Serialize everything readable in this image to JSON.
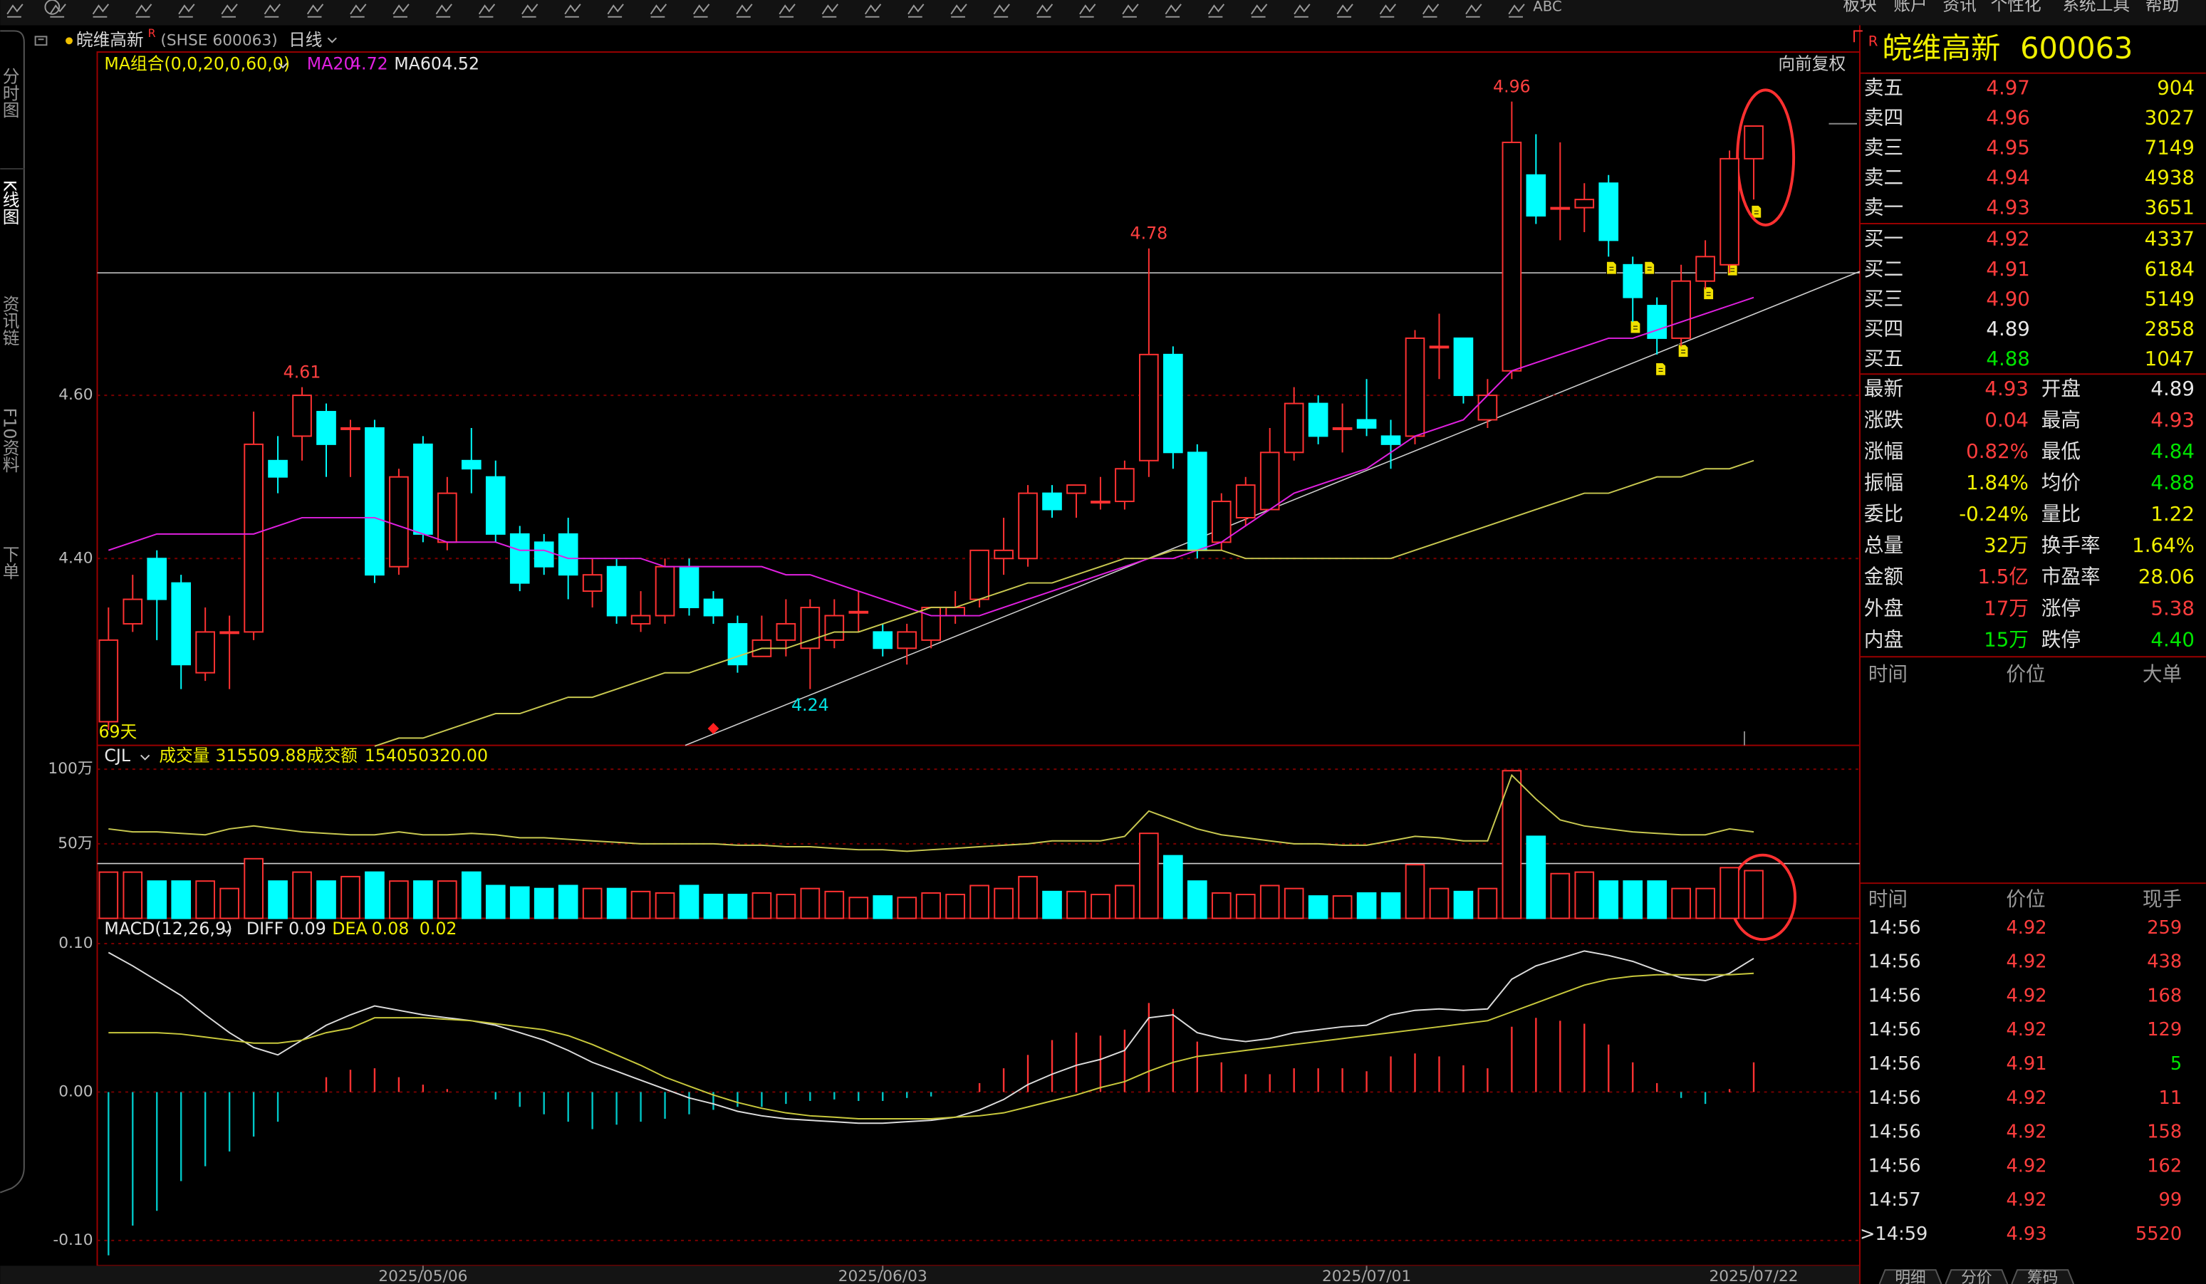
{
  "toolbar": {
    "abc": "ABC",
    "menu": [
      "板块",
      "账户",
      "资讯",
      "个性化",
      "系统工具",
      "帮助"
    ]
  },
  "sidebar": [
    "分时图",
    "K线图",
    "资讯链",
    "F10资料",
    "下单"
  ],
  "header": {
    "name": "皖维高新",
    "badge": "R",
    "code": "(SHSE 600063)",
    "period": "日线"
  },
  "chart_data": [
    {
      "type": "candlestick",
      "up_color": "#ff3232",
      "down_color": "#00ffff",
      "legend": {
        "title": "MA组合(0,0,20,0,60,0)",
        "values": [
          4.72,
          4.52
        ]
      },
      "note": "向前复权",
      "days": "69天",
      "ylim": [
        4.171,
        5.019
      ],
      "yticks": [
        {
          "value": 4.6,
          "label": "4.60"
        },
        {
          "value": 4.4,
          "label": "4.40"
        }
      ],
      "xticks": [
        {
          "value": 13,
          "label": "2025/05/06"
        },
        {
          "value": 32,
          "label": "2025/06/03"
        },
        {
          "value": 52,
          "label": "2025/07/01"
        },
        {
          "value": 68,
          "label": "2025/07/22"
        }
      ],
      "open": [
        4.2,
        4.32,
        4.4,
        4.37,
        4.26,
        4.31,
        4.31,
        4.52,
        4.55,
        4.58,
        4.56,
        4.56,
        4.39,
        4.54,
        4.42,
        4.52,
        4.5,
        4.43,
        4.42,
        4.43,
        4.36,
        4.39,
        4.32,
        4.33,
        4.39,
        4.35,
        4.32,
        4.28,
        4.3,
        4.29,
        4.3,
        4.335,
        4.31,
        4.29,
        4.3,
        4.33,
        4.35,
        4.4,
        4.4,
        4.48,
        4.48,
        4.47,
        4.47,
        4.52,
        4.65,
        4.53,
        4.42,
        4.45,
        4.46,
        4.53,
        4.59,
        4.56,
        4.57,
        4.55,
        4.55,
        4.66,
        4.67,
        4.57,
        4.63,
        4.87,
        4.83,
        4.83,
        4.86,
        4.76,
        4.71,
        4.67,
        4.74,
        4.76,
        4.89
      ],
      "high": [
        4.34,
        4.38,
        4.41,
        4.38,
        4.34,
        4.33,
        4.58,
        4.55,
        4.61,
        4.59,
        4.57,
        4.57,
        4.51,
        4.55,
        4.5,
        4.56,
        4.52,
        4.44,
        4.43,
        4.45,
        4.4,
        4.4,
        4.36,
        4.4,
        4.4,
        4.36,
        4.33,
        4.33,
        4.35,
        4.35,
        4.35,
        4.36,
        4.32,
        4.32,
        4.34,
        4.36,
        4.41,
        4.45,
        4.49,
        4.49,
        4.49,
        4.5,
        4.52,
        4.78,
        4.66,
        4.54,
        4.48,
        4.5,
        4.56,
        4.61,
        4.6,
        4.59,
        4.62,
        4.57,
        4.68,
        4.7,
        4.67,
        4.62,
        4.96,
        4.92,
        4.91,
        4.86,
        4.87,
        4.77,
        4.72,
        4.76,
        4.79,
        4.9,
        4.93
      ],
      "low": [
        4.19,
        4.31,
        4.3,
        4.24,
        4.25,
        4.24,
        4.3,
        4.48,
        4.52,
        4.5,
        4.5,
        4.37,
        4.38,
        4.42,
        4.41,
        4.48,
        4.42,
        4.36,
        4.38,
        4.35,
        4.34,
        4.32,
        4.31,
        4.32,
        4.33,
        4.32,
        4.26,
        4.28,
        4.28,
        4.24,
        4.29,
        4.31,
        4.28,
        4.27,
        4.29,
        4.32,
        4.34,
        4.38,
        4.39,
        4.45,
        4.45,
        4.46,
        4.46,
        4.5,
        4.51,
        4.4,
        4.41,
        4.44,
        4.46,
        4.52,
        4.54,
        4.53,
        4.55,
        4.51,
        4.54,
        4.62,
        4.59,
        4.56,
        4.62,
        4.81,
        4.79,
        4.8,
        4.77,
        4.69,
        4.65,
        4.66,
        4.73,
        4.75,
        4.84
      ],
      "close": [
        4.3,
        4.35,
        4.35,
        4.27,
        4.31,
        4.31,
        4.54,
        4.5,
        4.6,
        4.54,
        4.56,
        4.38,
        4.5,
        4.43,
        4.48,
        4.51,
        4.43,
        4.37,
        4.39,
        4.38,
        4.38,
        4.33,
        4.33,
        4.39,
        4.34,
        4.33,
        4.27,
        4.3,
        4.32,
        4.34,
        4.33,
        4.335,
        4.29,
        4.31,
        4.34,
        4.34,
        4.41,
        4.41,
        4.48,
        4.46,
        4.49,
        4.47,
        4.51,
        4.65,
        4.53,
        4.41,
        4.47,
        4.49,
        4.53,
        4.59,
        4.55,
        4.56,
        4.56,
        4.54,
        4.67,
        4.66,
        4.6,
        4.6,
        4.91,
        4.82,
        4.83,
        4.84,
        4.79,
        4.72,
        4.67,
        4.74,
        4.77,
        4.89,
        4.93
      ],
      "series": [
        {
          "name": "MA20",
          "color": "#e020e0",
          "values": [
            4.41,
            4.42,
            4.43,
            4.43,
            4.43,
            4.43,
            4.43,
            4.44,
            4.45,
            4.45,
            4.45,
            4.45,
            4.44,
            4.43,
            4.42,
            4.42,
            4.42,
            4.41,
            4.41,
            4.4,
            4.4,
            4.4,
            4.4,
            4.39,
            4.39,
            4.39,
            4.39,
            4.39,
            4.38,
            4.38,
            4.37,
            4.36,
            4.35,
            4.34,
            4.33,
            4.33,
            4.33,
            4.34,
            4.35,
            4.36,
            4.37,
            4.38,
            4.39,
            4.4,
            4.4,
            4.41,
            4.42,
            4.44,
            4.46,
            4.48,
            4.49,
            4.5,
            4.51,
            4.53,
            4.55,
            4.56,
            4.57,
            4.6,
            4.63,
            4.64,
            4.65,
            4.66,
            4.67,
            4.67,
            4.68,
            4.69,
            4.7,
            4.71,
            4.72
          ]
        },
        {
          "name": "MA60",
          "color": "#e8e8e8",
          "line_color": "#c8c850",
          "values": [
            null,
            null,
            null,
            null,
            null,
            null,
            null,
            null,
            null,
            null,
            null,
            4.17,
            4.18,
            4.18,
            4.19,
            4.2,
            4.21,
            4.21,
            4.22,
            4.23,
            4.23,
            4.24,
            4.25,
            4.26,
            4.26,
            4.27,
            4.28,
            4.29,
            4.29,
            4.3,
            4.31,
            4.31,
            4.32,
            4.33,
            4.34,
            4.34,
            4.35,
            4.36,
            4.37,
            4.37,
            4.38,
            4.39,
            4.4,
            4.4,
            4.41,
            4.41,
            4.41,
            4.4,
            4.4,
            4.4,
            4.4,
            4.4,
            4.4,
            4.4,
            4.41,
            4.42,
            4.43,
            4.44,
            4.45,
            4.46,
            4.47,
            4.48,
            4.48,
            4.49,
            4.5,
            4.5,
            4.51,
            4.51,
            4.52
          ]
        }
      ],
      "annotations": [
        {
          "index": 8,
          "value": 4.61
        },
        {
          "index": 43,
          "value": 4.78
        },
        {
          "index": 58,
          "value": 4.96
        },
        {
          "index": 29,
          "value": 4.24
        }
      ]
    },
    {
      "type": "bar",
      "title": "CJL",
      "up_color": "#ff3232",
      "down_color": "#00ffff",
      "legend": [
        {
          "name": "成交量",
          "value": "315509.88"
        },
        {
          "name": "成交额",
          "value": "154050320.00"
        }
      ],
      "ylim": [
        0,
        116
      ],
      "yticks": [
        {
          "value": 100,
          "label": "100万"
        },
        {
          "value": 50,
          "label": "50万"
        }
      ],
      "values": [
        31,
        31,
        25,
        25,
        25,
        20,
        40,
        25,
        31,
        25,
        28,
        31,
        25,
        25,
        25,
        31,
        22,
        21,
        20,
        22,
        20,
        20,
        18,
        17,
        22,
        16,
        16,
        17,
        16,
        20,
        18,
        14,
        15,
        14,
        17,
        16,
        22,
        20,
        28,
        18,
        18,
        16,
        22,
        57,
        42,
        25,
        17,
        16,
        22,
        20,
        15,
        15,
        17,
        17,
        36,
        20,
        18,
        20,
        99,
        55,
        30,
        31,
        25,
        25,
        25,
        20,
        20,
        34,
        32
      ],
      "series": [
        {
          "color": "#c8c850",
          "values": [
            60,
            58,
            58,
            57,
            56,
            60,
            62,
            60,
            58,
            57,
            56,
            56,
            58,
            56,
            56,
            57,
            56,
            54,
            54,
            53,
            52,
            51,
            50,
            50,
            50,
            50,
            49,
            49,
            48,
            48,
            47,
            46,
            46,
            45,
            46,
            47,
            48,
            49,
            50,
            52,
            52,
            52,
            55,
            72,
            66,
            60,
            56,
            54,
            52,
            50,
            50,
            49,
            49,
            52,
            55,
            54,
            52,
            52,
            96,
            80,
            66,
            62,
            60,
            58,
            57,
            56,
            56,
            60,
            58
          ]
        }
      ]
    },
    {
      "type": "macd",
      "title": "MACD(12,26,9)",
      "up_color": "#ff3232",
      "down_color": "#00c8c8",
      "legend": [
        {
          "name": "DIFF",
          "value": 0.09,
          "color": "#e8e8e8"
        },
        {
          "name": "DEA",
          "value": 0.08,
          "color": "#f0f000"
        },
        {
          "value": 0.02,
          "color": "#f0f000"
        }
      ],
      "ylim": [
        -0.117,
        0.117
      ],
      "yticks": [
        {
          "value": 0.1,
          "label": "0.10"
        },
        {
          "value": 0,
          "label": "0.00"
        },
        {
          "value": -0.1,
          "label": "-0.10"
        }
      ],
      "values": [
        -0.11,
        -0.09,
        -0.08,
        -0.06,
        -0.05,
        -0.04,
        -0.03,
        -0.02,
        0,
        0.01,
        0.015,
        0.016,
        0.01,
        0.005,
        0.002,
        0,
        -0.005,
        -0.01,
        -0.015,
        -0.02,
        -0.025,
        -0.022,
        -0.02,
        -0.018,
        -0.015,
        -0.012,
        -0.01,
        -0.01,
        -0.008,
        -0.006,
        -0.005,
        -0.006,
        -0.006,
        -0.004,
        -0.003,
        0,
        0.006,
        0.016,
        0.025,
        0.035,
        0.04,
        0.038,
        0.042,
        0.06,
        0.056,
        0.034,
        0.02,
        0.012,
        0.012,
        0.016,
        0.016,
        0.016,
        0.014,
        0.024,
        0.026,
        0.024,
        0.018,
        0.016,
        0.044,
        0.05,
        0.048,
        0.046,
        0.032,
        0.02,
        0.006,
        -0.004,
        -0.008,
        0.002,
        0.02
      ],
      "series": [
        {
          "color": "#dcdcdc",
          "values": [
            0.094,
            0.085,
            0.075,
            0.065,
            0.052,
            0.04,
            0.03,
            0.025,
            0.035,
            0.045,
            0.052,
            0.058,
            0.055,
            0.052,
            0.05,
            0.048,
            0.045,
            0.04,
            0.035,
            0.028,
            0.02,
            0.014,
            0.008,
            0.002,
            -0.004,
            -0.008,
            -0.013,
            -0.016,
            -0.018,
            -0.019,
            -0.02,
            -0.021,
            -0.021,
            -0.02,
            -0.019,
            -0.017,
            -0.012,
            -0.005,
            0.005,
            0.012,
            0.018,
            0.022,
            0.028,
            0.05,
            0.052,
            0.04,
            0.036,
            0.034,
            0.036,
            0.04,
            0.042,
            0.044,
            0.045,
            0.052,
            0.055,
            0.056,
            0.055,
            0.056,
            0.076,
            0.085,
            0.09,
            0.095,
            0.092,
            0.088,
            0.082,
            0.077,
            0.075,
            0.08,
            0.09
          ]
        },
        {
          "color": "#c8c83c",
          "values": [
            0.04,
            0.04,
            0.04,
            0.039,
            0.037,
            0.035,
            0.033,
            0.033,
            0.035,
            0.04,
            0.043,
            0.05,
            0.05,
            0.05,
            0.049,
            0.048,
            0.046,
            0.044,
            0.042,
            0.038,
            0.032,
            0.025,
            0.018,
            0.01,
            0.004,
            -0.002,
            -0.007,
            -0.011,
            -0.014,
            -0.016,
            -0.017,
            -0.018,
            -0.018,
            -0.018,
            -0.018,
            -0.017,
            -0.016,
            -0.014,
            -0.01,
            -0.006,
            -0.002,
            0.003,
            0.007,
            0.014,
            0.02,
            0.024,
            0.026,
            0.028,
            0.03,
            0.032,
            0.034,
            0.036,
            0.038,
            0.04,
            0.042,
            0.044,
            0.046,
            0.048,
            0.054,
            0.06,
            0.066,
            0.072,
            0.076,
            0.078,
            0.079,
            0.079,
            0.079,
            0.079,
            0.08
          ]
        }
      ]
    }
  ],
  "quote": {
    "badge": "R",
    "name": "皖维高新",
    "code": "600063",
    "book": [
      {
        "label": "卖五",
        "price": "4.97",
        "vol": "904",
        "color": "#ff3d3d"
      },
      {
        "label": "卖四",
        "price": "4.96",
        "vol": "3027",
        "color": "#ff3d3d"
      },
      {
        "label": "卖三",
        "price": "4.95",
        "vol": "7149",
        "color": "#ff3d3d"
      },
      {
        "label": "卖二",
        "price": "4.94",
        "vol": "4938",
        "color": "#ff3d3d"
      },
      {
        "label": "卖一",
        "price": "4.93",
        "vol": "3651",
        "color": "#ff3d3d"
      },
      {
        "label": "买一",
        "price": "4.92",
        "vol": "4337",
        "color": "#ff3d3d"
      },
      {
        "label": "买二",
        "price": "4.91",
        "vol": "6184",
        "color": "#ff3d3d"
      },
      {
        "label": "买三",
        "price": "4.90",
        "vol": "5149",
        "color": "#ff3d3d"
      },
      {
        "label": "买四",
        "price": "4.89",
        "vol": "2858",
        "color": "#e8e8e8"
      },
      {
        "label": "买五",
        "price": "4.88",
        "vol": "1047",
        "color": "#00e600"
      }
    ],
    "stats": [
      {
        "label": "最新",
        "value": "4.93",
        "color": "#ff3d3d"
      },
      {
        "label": "开盘",
        "value": "4.89",
        "color": "#e8e8e8"
      },
      {
        "label": "涨跌",
        "value": "0.04",
        "color": "#ff3d3d"
      },
      {
        "label": "最高",
        "value": "4.93",
        "color": "#ff3d3d"
      },
      {
        "label": "涨幅",
        "value": "0.82%",
        "color": "#ff3d3d"
      },
      {
        "label": "最低",
        "value": "4.84",
        "color": "#00e600"
      },
      {
        "label": "振幅",
        "value": "1.84%",
        "color": "#f0f000"
      },
      {
        "label": "均价",
        "value": "4.88",
        "color": "#00e600"
      },
      {
        "label": "委比",
        "value": "-0.24%",
        "color": "#f0f000"
      },
      {
        "label": "量比",
        "value": "1.22",
        "color": "#f0f000"
      },
      {
        "label": "总量",
        "value": "32万",
        "color": "#f0f000"
      },
      {
        "label": "换手率",
        "value": "1.64%",
        "color": "#f0f000"
      },
      {
        "label": "金额",
        "value": "1.5亿",
        "color": "#ff3d3d"
      },
      {
        "label": "市盈率",
        "value": "28.06",
        "color": "#f0f000"
      },
      {
        "label": "外盘",
        "value": "17万",
        "color": "#ff3d3d"
      },
      {
        "label": "涨停",
        "value": "5.38",
        "color": "#ff3d3d"
      },
      {
        "label": "内盘",
        "value": "15万",
        "color": "#00e600"
      },
      {
        "label": "跌停",
        "value": "4.40",
        "color": "#00e600"
      }
    ],
    "big_header": [
      "时间",
      "价位",
      "大单"
    ],
    "trade_header": [
      "时间",
      "价位",
      "现手"
    ],
    "trades": [
      {
        "time": "14:56",
        "price": "4.92",
        "vol": "259",
        "color": "#ff3d3d"
      },
      {
        "time": "14:56",
        "price": "4.92",
        "vol": "438",
        "color": "#ff3d3d"
      },
      {
        "time": "14:56",
        "price": "4.92",
        "vol": "168",
        "color": "#ff3d3d"
      },
      {
        "time": "14:56",
        "price": "4.92",
        "vol": "129",
        "color": "#ff3d3d"
      },
      {
        "time": "14:56",
        "price": "4.91",
        "vol": "5",
        "color": "#00e600"
      },
      {
        "time": "14:56",
        "price": "4.92",
        "vol": "11",
        "color": "#ff3d3d"
      },
      {
        "time": "14:56",
        "price": "4.92",
        "vol": "158",
        "color": "#ff3d3d"
      },
      {
        "time": "14:56",
        "price": "4.92",
        "vol": "162",
        "color": "#ff3d3d"
      },
      {
        "time": "14:57",
        "price": "4.92",
        "vol": "99",
        "color": "#ff3d3d"
      },
      {
        "time": ">14:59",
        "price": "4.93",
        "vol": "5520",
        "color": "#ff3d3d"
      }
    ],
    "tabs": [
      "明细",
      "分价",
      "筹码"
    ]
  }
}
